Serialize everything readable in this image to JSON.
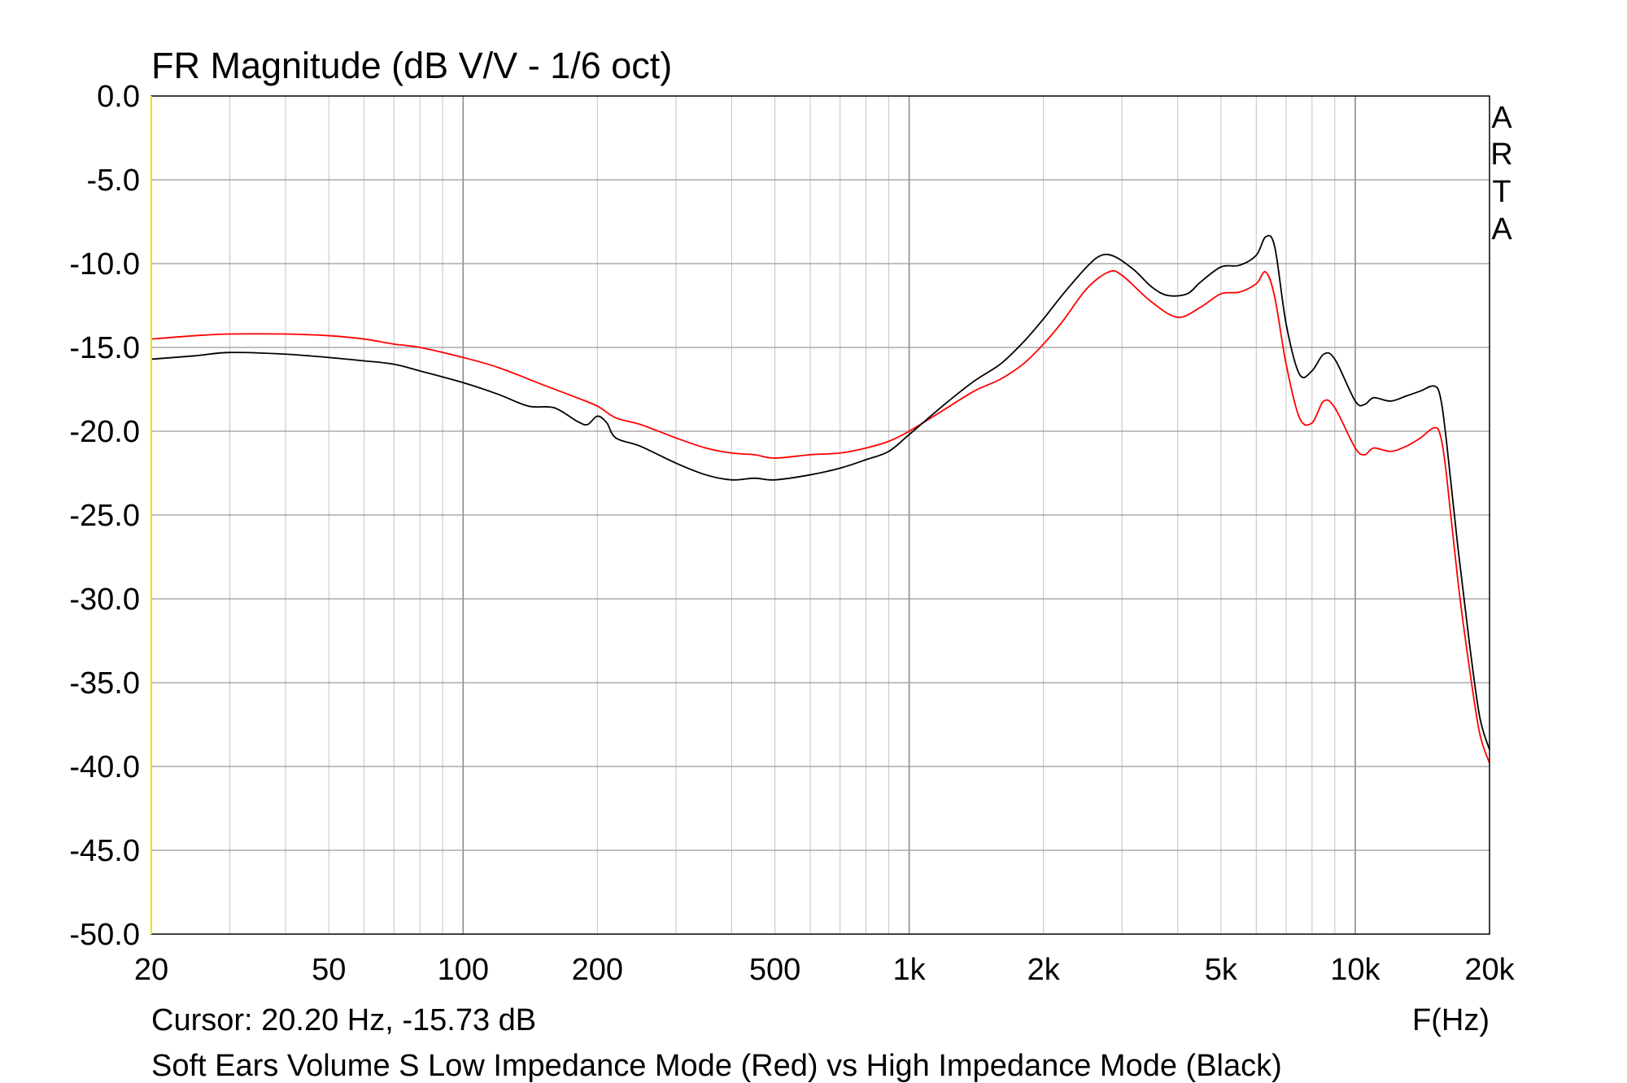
{
  "chart_data": {
    "type": "line",
    "title": "FR Magnitude (dB V/V - 1/6 oct)",
    "xlabel": "F(Hz)",
    "ylabel": "",
    "x_scale": "log",
    "xlim": [
      20,
      20000
    ],
    "ylim": [
      -50,
      0
    ],
    "grid": true,
    "x_ticks": [
      {
        "value": 20,
        "label": "20"
      },
      {
        "value": 50,
        "label": "50"
      },
      {
        "value": 100,
        "label": "100"
      },
      {
        "value": 200,
        "label": "200"
      },
      {
        "value": 500,
        "label": "500"
      },
      {
        "value": 1000,
        "label": "1k"
      },
      {
        "value": 2000,
        "label": "2k"
      },
      {
        "value": 5000,
        "label": "5k"
      },
      {
        "value": 10000,
        "label": "10k"
      },
      {
        "value": 20000,
        "label": "20k"
      }
    ],
    "y_ticks": [
      {
        "value": 0,
        "label": "0.0"
      },
      {
        "value": -5,
        "label": "-5.0"
      },
      {
        "value": -10,
        "label": "-10.0"
      },
      {
        "value": -15,
        "label": "-15.0"
      },
      {
        "value": -20,
        "label": "-20.0"
      },
      {
        "value": -25,
        "label": "-25.0"
      },
      {
        "value": -30,
        "label": "-30.0"
      },
      {
        "value": -35,
        "label": "-35.0"
      },
      {
        "value": -40,
        "label": "-40.0"
      },
      {
        "value": -45,
        "label": "-45.0"
      },
      {
        "value": -50,
        "label": "-50.0"
      }
    ],
    "cursor_text": "Cursor: 20.20 Hz, -15.73 dB",
    "caption": "Soft Ears Volume S Low Impedance Mode (Red) vs High Impedance Mode (Black)",
    "brand_text": "ARTA",
    "series": [
      {
        "color": "#ff0000",
        "points": [
          [
            20,
            -14.5
          ],
          [
            25,
            -14.3
          ],
          [
            30,
            -14.2
          ],
          [
            40,
            -14.2
          ],
          [
            50,
            -14.3
          ],
          [
            60,
            -14.5
          ],
          [
            70,
            -14.8
          ],
          [
            80,
            -15.0
          ],
          [
            100,
            -15.6
          ],
          [
            120,
            -16.2
          ],
          [
            150,
            -17.2
          ],
          [
            180,
            -18.0
          ],
          [
            200,
            -18.5
          ],
          [
            220,
            -19.2
          ],
          [
            250,
            -19.6
          ],
          [
            300,
            -20.4
          ],
          [
            350,
            -21.0
          ],
          [
            400,
            -21.3
          ],
          [
            450,
            -21.4
          ],
          [
            500,
            -21.6
          ],
          [
            600,
            -21.4
          ],
          [
            700,
            -21.3
          ],
          [
            800,
            -21.0
          ],
          [
            900,
            -20.6
          ],
          [
            1000,
            -20.0
          ],
          [
            1200,
            -18.7
          ],
          [
            1400,
            -17.6
          ],
          [
            1600,
            -16.9
          ],
          [
            1800,
            -16.0
          ],
          [
            2000,
            -14.8
          ],
          [
            2200,
            -13.5
          ],
          [
            2500,
            -11.5
          ],
          [
            2800,
            -10.5
          ],
          [
            3000,
            -10.7
          ],
          [
            3500,
            -12.3
          ],
          [
            4000,
            -13.2
          ],
          [
            4500,
            -12.6
          ],
          [
            5000,
            -11.8
          ],
          [
            5500,
            -11.7
          ],
          [
            6000,
            -11.2
          ],
          [
            6300,
            -10.5
          ],
          [
            6600,
            -12.0
          ],
          [
            7000,
            -16.0
          ],
          [
            7500,
            -19.2
          ],
          [
            8000,
            -19.5
          ],
          [
            8500,
            -18.2
          ],
          [
            9000,
            -18.6
          ],
          [
            10000,
            -21.0
          ],
          [
            10500,
            -21.4
          ],
          [
            11000,
            -21.0
          ],
          [
            12000,
            -21.2
          ],
          [
            13000,
            -20.9
          ],
          [
            14000,
            -20.4
          ],
          [
            15000,
            -19.8
          ],
          [
            15500,
            -20.2
          ],
          [
            16000,
            -22.5
          ],
          [
            17000,
            -29.0
          ],
          [
            18000,
            -34.0
          ],
          [
            19000,
            -38.0
          ],
          [
            20000,
            -39.8
          ]
        ]
      },
      {
        "color": "#000000",
        "points": [
          [
            20,
            -15.7
          ],
          [
            25,
            -15.5
          ],
          [
            30,
            -15.3
          ],
          [
            40,
            -15.4
          ],
          [
            50,
            -15.6
          ],
          [
            60,
            -15.8
          ],
          [
            70,
            -16.0
          ],
          [
            80,
            -16.4
          ],
          [
            100,
            -17.1
          ],
          [
            120,
            -17.8
          ],
          [
            140,
            -18.5
          ],
          [
            160,
            -18.6
          ],
          [
            180,
            -19.4
          ],
          [
            190,
            -19.6
          ],
          [
            200,
            -19.1
          ],
          [
            210,
            -19.5
          ],
          [
            220,
            -20.4
          ],
          [
            250,
            -20.9
          ],
          [
            300,
            -21.9
          ],
          [
            350,
            -22.6
          ],
          [
            400,
            -22.9
          ],
          [
            450,
            -22.8
          ],
          [
            500,
            -22.9
          ],
          [
            600,
            -22.6
          ],
          [
            700,
            -22.2
          ],
          [
            800,
            -21.7
          ],
          [
            900,
            -21.2
          ],
          [
            1000,
            -20.2
          ],
          [
            1200,
            -18.4
          ],
          [
            1400,
            -17.0
          ],
          [
            1600,
            -16.0
          ],
          [
            1800,
            -14.7
          ],
          [
            2000,
            -13.3
          ],
          [
            2200,
            -11.9
          ],
          [
            2500,
            -10.2
          ],
          [
            2700,
            -9.5
          ],
          [
            2900,
            -9.6
          ],
          [
            3200,
            -10.4
          ],
          [
            3500,
            -11.4
          ],
          [
            3800,
            -11.9
          ],
          [
            4200,
            -11.8
          ],
          [
            4500,
            -11.1
          ],
          [
            5000,
            -10.2
          ],
          [
            5500,
            -10.1
          ],
          [
            6000,
            -9.5
          ],
          [
            6300,
            -8.4
          ],
          [
            6600,
            -9.0
          ],
          [
            7000,
            -13.6
          ],
          [
            7500,
            -16.6
          ],
          [
            8000,
            -16.4
          ],
          [
            8500,
            -15.4
          ],
          [
            9000,
            -15.7
          ],
          [
            10000,
            -18.2
          ],
          [
            10500,
            -18.4
          ],
          [
            11000,
            -18.0
          ],
          [
            12000,
            -18.2
          ],
          [
            13000,
            -17.9
          ],
          [
            14000,
            -17.6
          ],
          [
            15000,
            -17.3
          ],
          [
            15500,
            -17.9
          ],
          [
            16000,
            -20.5
          ],
          [
            17000,
            -27.0
          ],
          [
            18000,
            -32.5
          ],
          [
            19000,
            -37.0
          ],
          [
            20000,
            -39.0
          ]
        ]
      }
    ]
  }
}
